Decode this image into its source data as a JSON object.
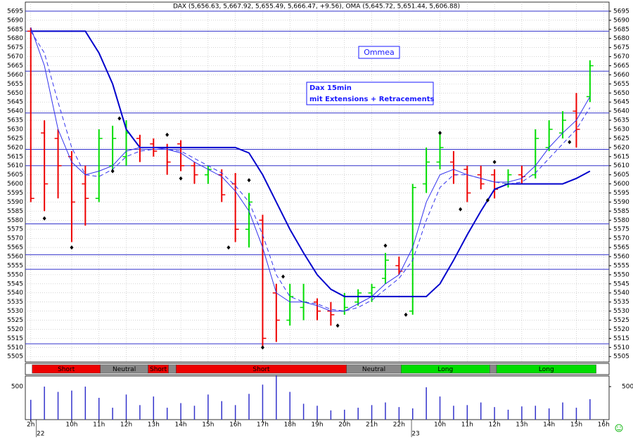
{
  "chart_data": {
    "type": "ohlc",
    "title": "DAX (5,656.63, 5,667.92, 5,655.49, 5,666.47, +9.56), OMA (5,645.72, 5,651.44, 5,606.88)",
    "annotations": [
      "Ommea",
      "Dax 15min",
      "mit Extensions + Retracements"
    ],
    "xlim": [
      -0.8,
      84.8
    ],
    "xticks": [
      {
        "value": 0,
        "label": "2h"
      },
      {
        "value": 6,
        "label": "10h"
      },
      {
        "value": 10,
        "label": "11h"
      },
      {
        "value": 14,
        "label": "12h"
      },
      {
        "value": 18,
        "label": "13h"
      },
      {
        "value": 22,
        "label": "14h"
      },
      {
        "value": 26,
        "label": "15h"
      },
      {
        "value": 30,
        "label": "16h"
      },
      {
        "value": 34,
        "label": "17h"
      },
      {
        "value": 38,
        "label": "18h"
      },
      {
        "value": 42,
        "label": "19h"
      },
      {
        "value": 46,
        "label": "20h"
      },
      {
        "value": 50,
        "label": "21h"
      },
      {
        "value": 54,
        "label": "22h"
      },
      {
        "value": 60,
        "label": "10h"
      },
      {
        "value": 64,
        "label": "11h"
      },
      {
        "value": 68,
        "label": "12h"
      },
      {
        "value": 72,
        "label": "13h"
      },
      {
        "value": 76,
        "label": "14h"
      },
      {
        "value": 80,
        "label": "15h"
      },
      {
        "value": 84,
        "label": "16h"
      }
    ],
    "dates": [
      {
        "value": 0,
        "label": "22"
      },
      {
        "value": 55,
        "label": "23"
      }
    ],
    "ylim": [
      5502,
      5700
    ],
    "yticks": [
      5505,
      5510,
      5515,
      5520,
      5525,
      5530,
      5535,
      5540,
      5545,
      5550,
      5555,
      5560,
      5565,
      5570,
      5575,
      5580,
      5585,
      5590,
      5595,
      5600,
      5605,
      5610,
      5615,
      5620,
      5625,
      5630,
      5635,
      5640,
      5645,
      5650,
      5655,
      5660,
      5665,
      5670,
      5675,
      5680,
      5685,
      5690,
      5695
    ],
    "grid": true,
    "up_color": "#00dd00",
    "down_color": "#ee0000",
    "x": [
      0,
      2,
      4,
      6,
      8,
      10,
      12,
      14,
      16,
      18,
      20,
      22,
      24,
      26,
      28,
      30,
      32,
      34,
      36,
      38,
      40,
      42,
      44,
      46,
      48,
      50,
      52,
      54,
      56,
      58,
      60,
      62,
      64,
      66,
      68,
      70,
      72,
      74,
      76,
      78,
      80,
      82
    ],
    "open": [
      5684,
      5628,
      5625,
      5615,
      5600,
      5592,
      5610,
      5615,
      5625,
      5622,
      5620,
      5622,
      5610,
      5605,
      5605,
      5600,
      5575,
      5580,
      5540,
      5525,
      5532,
      5535,
      5530,
      5530,
      5535,
      5540,
      5548,
      5555,
      5530,
      5600,
      5612,
      5612,
      5608,
      5605,
      5605,
      5600,
      5605,
      5605,
      5620,
      5628,
      5640,
      5648
    ],
    "high": [
      5686,
      5635,
      5630,
      5618,
      5610,
      5630,
      5632,
      5635,
      5627,
      5625,
      5622,
      5624,
      5612,
      5610,
      5608,
      5606,
      5595,
      5583,
      5545,
      5545,
      5545,
      5537,
      5535,
      5540,
      5542,
      5545,
      5562,
      5560,
      5600,
      5620,
      5628,
      5618,
      5610,
      5610,
      5608,
      5608,
      5610,
      5630,
      5635,
      5640,
      5650,
      5668
    ],
    "low": [
      5590,
      5585,
      5592,
      5568,
      5577,
      5590,
      5607,
      5610,
      5612,
      5615,
      5605,
      5607,
      5600,
      5600,
      5590,
      5568,
      5565,
      5510,
      5513,
      5522,
      5525,
      5525,
      5522,
      5528,
      5533,
      5535,
      5545,
      5550,
      5528,
      5595,
      5608,
      5600,
      5590,
      5597,
      5592,
      5598,
      5600,
      5603,
      5618,
      5625,
      5620,
      5645
    ],
    "close": [
      5592,
      5600,
      5610,
      5590,
      5592,
      5625,
      5625,
      5628,
      5620,
      5618,
      5612,
      5610,
      5605,
      5608,
      5594,
      5575,
      5590,
      5515,
      5525,
      5538,
      5535,
      5530,
      5528,
      5532,
      5540,
      5543,
      5558,
      5552,
      5598,
      5612,
      5620,
      5605,
      5595,
      5600,
      5597,
      5605,
      5604,
      5625,
      5630,
      5635,
      5630,
      5665
    ],
    "series": [
      {
        "name": "OMA",
        "color": "#0000cc",
        "width": 2,
        "dash": false,
        "values": [
          5684,
          5684,
          5684,
          5684,
          5684,
          5672,
          5655,
          5630,
          5620,
          5620,
          5620,
          5620,
          5620,
          5620,
          5620,
          5620,
          5617,
          5605,
          5590,
          5575,
          5562,
          5550,
          5542,
          5538,
          5538,
          5538,
          5538,
          5538,
          5538,
          5538,
          5545,
          5558,
          5572,
          5585,
          5597,
          5600,
          5600,
          5600,
          5600,
          5600,
          5603,
          5607
        ]
      },
      {
        "color": "#3333ee",
        "width": 1,
        "dash": false,
        "values": [
          5686,
          5665,
          5630,
          5612,
          5605,
          5607,
          5610,
          5618,
          5620,
          5620,
          5619,
          5617,
          5612,
          5608,
          5604,
          5596,
          5585,
          5565,
          5540,
          5535,
          5535,
          5533,
          5530,
          5530,
          5534,
          5538,
          5545,
          5550,
          5565,
          5590,
          5605,
          5608,
          5605,
          5603,
          5601,
          5601,
          5603,
          5610,
          5620,
          5628,
          5635,
          5648
        ]
      },
      {
        "color": "#3333ee",
        "width": 1,
        "dash": true,
        "values": [
          5684,
          5672,
          5645,
          5620,
          5605,
          5604,
          5608,
          5615,
          5618,
          5619,
          5619,
          5618,
          5614,
          5610,
          5606,
          5599,
          5590,
          5572,
          5550,
          5538,
          5535,
          5534,
          5531,
          5530,
          5532,
          5536,
          5542,
          5548,
          5558,
          5580,
          5598,
          5605,
          5605,
          5603,
          5601,
          5600,
          5601,
          5606,
          5614,
          5622,
          5630,
          5642
        ]
      }
    ],
    "levels": {
      "color": "#3333cc",
      "values": [
        5695,
        5684,
        5662,
        5639,
        5619,
        5610,
        5578,
        5561,
        5553,
        5512
      ]
    },
    "markers": {
      "x": [
        2,
        6,
        12,
        13,
        20,
        22,
        29,
        32,
        34,
        37,
        45,
        52,
        55,
        60,
        63,
        67,
        68,
        79
      ],
      "values": [
        5581,
        5565,
        5607,
        5636,
        5627,
        5603,
        5565,
        5602,
        5510,
        5549,
        5522,
        5566,
        5528,
        5628,
        5586,
        5591,
        5612,
        5623
      ]
    },
    "signals": [
      {
        "label": "Short",
        "start": 0.2,
        "end": 10.2,
        "color": "#ee0000"
      },
      {
        "label": "Neutral",
        "start": 10.2,
        "end": 17.2,
        "color": "#888888"
      },
      {
        "label": "Short",
        "start": 17.2,
        "end": 20.2,
        "color": "#ee0000"
      },
      {
        "label": null,
        "start": 20.2,
        "end": 21.3,
        "color": "#888888"
      },
      {
        "label": "Short",
        "start": 21.3,
        "end": 46.3,
        "color": "#ee0000"
      },
      {
        "label": "Neutral",
        "start": 46.3,
        "end": 54.3,
        "color": "#888888"
      },
      {
        "label": "Long",
        "start": 54.3,
        "end": 67.3,
        "color": "#00dd00"
      },
      {
        "label": null,
        "start": 67.3,
        "end": 68.3,
        "color": "#888888"
      },
      {
        "label": "Long",
        "start": 68.3,
        "end": 82.9,
        "color": "#00dd00"
      }
    ],
    "volume": {
      "color": "#3333cc",
      "ylim": [
        0,
        660
      ],
      "yticks": [
        500
      ],
      "values": [
        300,
        500,
        420,
        440,
        500,
        330,
        180,
        380,
        220,
        350,
        180,
        250,
        210,
        380,
        280,
        220,
        390,
        530,
        670,
        420,
        240,
        210,
        140,
        150,
        180,
        220,
        260,
        190,
        170,
        490,
        350,
        210,
        220,
        260,
        190,
        150,
        200,
        210,
        170,
        260,
        180,
        310
      ]
    }
  }
}
